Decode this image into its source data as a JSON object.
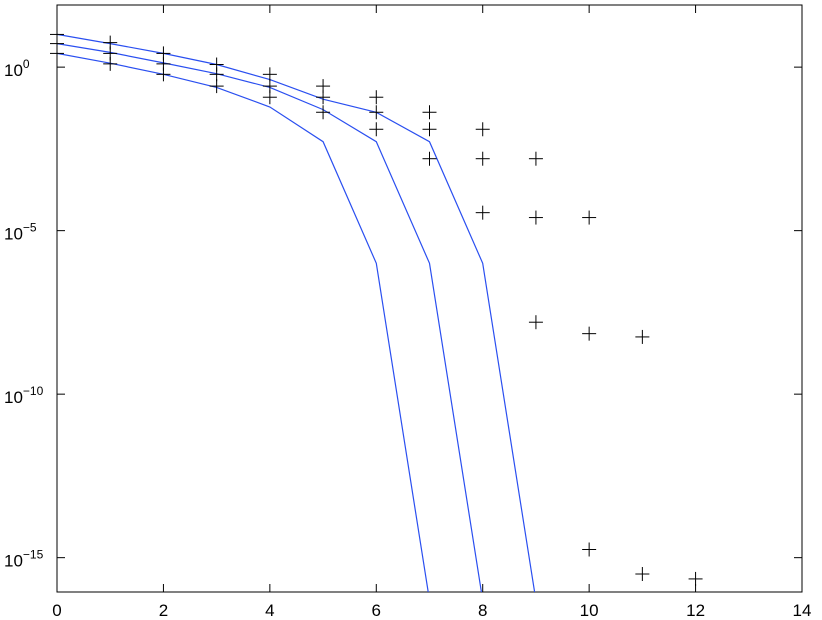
{
  "chart_data": {
    "type": "line",
    "title": "",
    "xlabel": "",
    "ylabel": "",
    "xlim": [
      0,
      14
    ],
    "ylim_log10": [
      -16,
      1
    ],
    "y_scale": "log",
    "grid": false,
    "x_ticks": [
      {
        "value": 0,
        "label": "0"
      },
      {
        "value": 2,
        "label": "2"
      },
      {
        "value": 4,
        "label": "4"
      },
      {
        "value": 6,
        "label": "6"
      },
      {
        "value": 8,
        "label": "8"
      },
      {
        "value": 10,
        "label": "10"
      },
      {
        "value": 12,
        "label": "12"
      },
      {
        "value": 14,
        "label": "14"
      }
    ],
    "y_ticks": [
      {
        "log10": 0,
        "base": "10",
        "exp": "0"
      },
      {
        "log10": -5,
        "base": "10",
        "exp": "−5"
      },
      {
        "log10": -10,
        "base": "10",
        "exp": "−10"
      },
      {
        "log10": -15,
        "base": "10",
        "exp": "−15"
      }
    ],
    "line_color": "#2a4ff0",
    "marker_color": "#000000",
    "lines": [
      {
        "x": [
          0,
          1,
          2,
          3,
          4,
          5,
          6,
          7,
          8,
          9
        ],
        "log10_y": [
          1.0,
          0.72,
          0.42,
          0.08,
          -0.38,
          -0.98,
          -1.38,
          -2.28,
          -6.0,
          -16.3
        ]
      },
      {
        "x": [
          0,
          1,
          2,
          3,
          4,
          5,
          6,
          7,
          8
        ],
        "log10_y": [
          0.72,
          0.45,
          0.13,
          -0.2,
          -0.62,
          -1.3,
          -2.28,
          -6.0,
          -16.3
        ]
      },
      {
        "x": [
          0,
          1,
          2,
          3,
          4,
          5,
          6,
          7
        ],
        "log10_y": [
          0.42,
          0.12,
          -0.22,
          -0.62,
          -1.22,
          -2.28,
          -6.0,
          -16.3
        ]
      }
    ],
    "markers": [
      {
        "x": 0,
        "log10_y": 1.0
      },
      {
        "x": 0,
        "log10_y": 0.72
      },
      {
        "x": 0,
        "log10_y": 0.42
      },
      {
        "x": 1,
        "log10_y": 0.75
      },
      {
        "x": 1,
        "log10_y": 0.42
      },
      {
        "x": 1,
        "log10_y": 0.1
      },
      {
        "x": 2,
        "log10_y": 0.42
      },
      {
        "x": 2,
        "log10_y": 0.1
      },
      {
        "x": 2,
        "log10_y": -0.22
      },
      {
        "x": 3,
        "log10_y": 0.08
      },
      {
        "x": 3,
        "log10_y": -0.22
      },
      {
        "x": 3,
        "log10_y": -0.58
      },
      {
        "x": 4,
        "log10_y": -0.22
      },
      {
        "x": 4,
        "log10_y": -0.58
      },
      {
        "x": 4,
        "log10_y": -0.92
      },
      {
        "x": 5,
        "log10_y": -0.58
      },
      {
        "x": 5,
        "log10_y": -0.92
      },
      {
        "x": 5,
        "log10_y": -1.38
      },
      {
        "x": 6,
        "log10_y": -0.92
      },
      {
        "x": 6,
        "log10_y": -1.38
      },
      {
        "x": 6,
        "log10_y": -1.9
      },
      {
        "x": 7,
        "log10_y": -1.38
      },
      {
        "x": 7,
        "log10_y": -1.9
      },
      {
        "x": 7,
        "log10_y": -2.8
      },
      {
        "x": 8,
        "log10_y": -1.9
      },
      {
        "x": 8,
        "log10_y": -2.8
      },
      {
        "x": 8,
        "log10_y": -4.45
      },
      {
        "x": 9,
        "log10_y": -2.8
      },
      {
        "x": 9,
        "log10_y": -4.6
      },
      {
        "x": 9,
        "log10_y": -7.8
      },
      {
        "x": 10,
        "log10_y": -4.6
      },
      {
        "x": 10,
        "log10_y": -8.15
      },
      {
        "x": 10,
        "log10_y": -14.75
      },
      {
        "x": 11,
        "log10_y": -8.25
      },
      {
        "x": 11,
        "log10_y": -15.5
      },
      {
        "x": 12,
        "log10_y": -15.65
      }
    ]
  }
}
